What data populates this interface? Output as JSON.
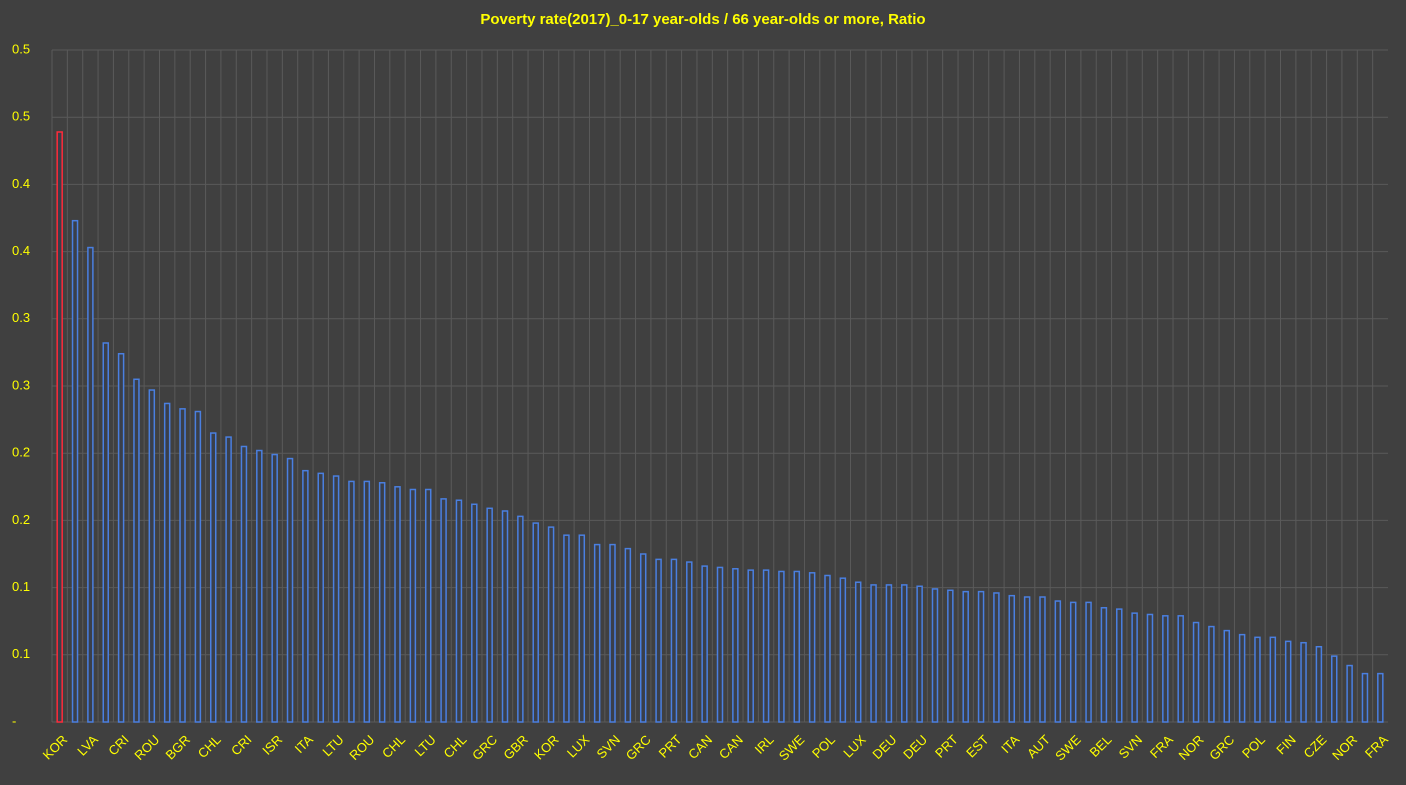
{
  "chart_data": {
    "type": "bar",
    "title": "Poverty rate(2017)_0-17 year-olds / 66 year-olds or more, Ratio",
    "categories": [
      "KOR",
      null,
      "LVA",
      null,
      "CRI",
      null,
      "ROU",
      null,
      "BGR",
      null,
      "CHL",
      null,
      "CRI",
      null,
      "ISR",
      null,
      "ITA",
      null,
      "LTU",
      null,
      "ROU",
      null,
      "CHL",
      null,
      "LTU",
      null,
      "CHL",
      null,
      "GRC",
      null,
      "GBR",
      null,
      "KOR",
      null,
      "LUX",
      null,
      "SVN",
      null,
      "GRC",
      null,
      "PRT",
      null,
      "CAN",
      null,
      "CAN",
      null,
      "IRL",
      null,
      "SWE",
      null,
      "POL",
      null,
      "LUX",
      null,
      "DEU",
      null,
      "DEU",
      null,
      "PRT",
      null,
      "EST",
      null,
      "ITA",
      null,
      "AUT",
      null,
      "SWE",
      null,
      "BEL",
      null,
      "SVN",
      null,
      "FRA",
      null,
      "NOR",
      null,
      "GRC",
      null,
      "POL",
      null,
      "FIN",
      null,
      "CZE",
      null,
      "NOR",
      null,
      "FRA"
    ],
    "values": [
      0.439,
      0.373,
      0.353,
      0.282,
      0.274,
      0.255,
      0.247,
      0.237,
      0.233,
      0.231,
      0.215,
      0.212,
      0.205,
      0.202,
      0.199,
      0.196,
      0.187,
      0.185,
      0.183,
      0.179,
      0.179,
      0.178,
      0.175,
      0.173,
      0.173,
      0.166,
      0.165,
      0.162,
      0.159,
      0.157,
      0.153,
      0.148,
      0.145,
      0.139,
      0.139,
      0.132,
      0.132,
      0.129,
      0.125,
      0.121,
      0.121,
      0.119,
      0.116,
      0.115,
      0.114,
      0.113,
      0.113,
      0.112,
      0.112,
      0.111,
      0.109,
      0.107,
      0.104,
      0.102,
      0.102,
      0.102,
      0.101,
      0.099,
      0.098,
      0.097,
      0.097,
      0.096,
      0.094,
      0.093,
      0.093,
      0.09,
      0.089,
      0.089,
      0.085,
      0.084,
      0.081,
      0.08,
      0.079,
      0.079,
      0.074,
      0.071,
      0.068,
      0.065,
      0.063,
      0.063,
      0.06,
      0.059,
      0.056,
      0.049,
      0.042,
      0.036,
      0.036
    ],
    "colors": [
      "#ff2a3a",
      "#4a7fe0",
      "#4a7fe0",
      "#4a7fe0",
      "#4a7fe0",
      "#4a7fe0",
      "#4a7fe0",
      "#4a7fe0",
      "#4a7fe0",
      "#4a7fe0",
      "#4a7fe0",
      "#4a7fe0",
      "#4a7fe0",
      "#4a7fe0",
      "#4a7fe0",
      "#4a7fe0",
      "#4a7fe0",
      "#4a7fe0",
      "#4a7fe0",
      "#4a7fe0",
      "#4a7fe0",
      "#4a7fe0",
      "#4a7fe0",
      "#4a7fe0",
      "#4a7fe0",
      "#4a7fe0",
      "#4a7fe0",
      "#4a7fe0",
      "#4a7fe0",
      "#4a7fe0",
      "#4a7fe0",
      "#4a7fe0",
      "#4a7fe0",
      "#4a7fe0",
      "#4a7fe0",
      "#4a7fe0",
      "#4a7fe0",
      "#4a7fe0",
      "#4a7fe0",
      "#4a7fe0",
      "#4a7fe0",
      "#4a7fe0",
      "#4a7fe0",
      "#4a7fe0",
      "#4a7fe0",
      "#4a7fe0",
      "#4a7fe0",
      "#4a7fe0",
      "#4a7fe0",
      "#4a7fe0",
      "#4a7fe0",
      "#4a7fe0",
      "#4a7fe0",
      "#4a7fe0",
      "#4a7fe0",
      "#4a7fe0",
      "#4a7fe0",
      "#4a7fe0",
      "#4a7fe0",
      "#4a7fe0",
      "#4a7fe0",
      "#4a7fe0",
      "#4a7fe0",
      "#4a7fe0",
      "#4a7fe0",
      "#4a7fe0",
      "#4a7fe0",
      "#4a7fe0",
      "#4a7fe0",
      "#4a7fe0",
      "#4a7fe0",
      "#4a7fe0",
      "#4a7fe0",
      "#4a7fe0",
      "#4a7fe0",
      "#4a7fe0",
      "#4a7fe0",
      "#4a7fe0",
      "#4a7fe0",
      "#4a7fe0",
      "#4a7fe0",
      "#4a7fe0",
      "#4a7fe0",
      "#4a7fe0",
      "#4a7fe0",
      "#4a7fe0",
      "#4a7fe0"
    ],
    "ylim": [
      0,
      0.5
    ],
    "yticks": [
      {
        "value": 0,
        "label": "-"
      },
      {
        "value": 0.05,
        "label": "0.1"
      },
      {
        "value": 0.1,
        "label": "0.1"
      },
      {
        "value": 0.15,
        "label": "0.2"
      },
      {
        "value": 0.2,
        "label": "0.2"
      },
      {
        "value": 0.25,
        "label": "0.3"
      },
      {
        "value": 0.3,
        "label": "0.3"
      },
      {
        "value": 0.35,
        "label": "0.4"
      },
      {
        "value": 0.4,
        "label": "0.4"
      },
      {
        "value": 0.45,
        "label": "0.5"
      },
      {
        "value": 0.5,
        "label": "0.5"
      }
    ],
    "grid": true
  }
}
